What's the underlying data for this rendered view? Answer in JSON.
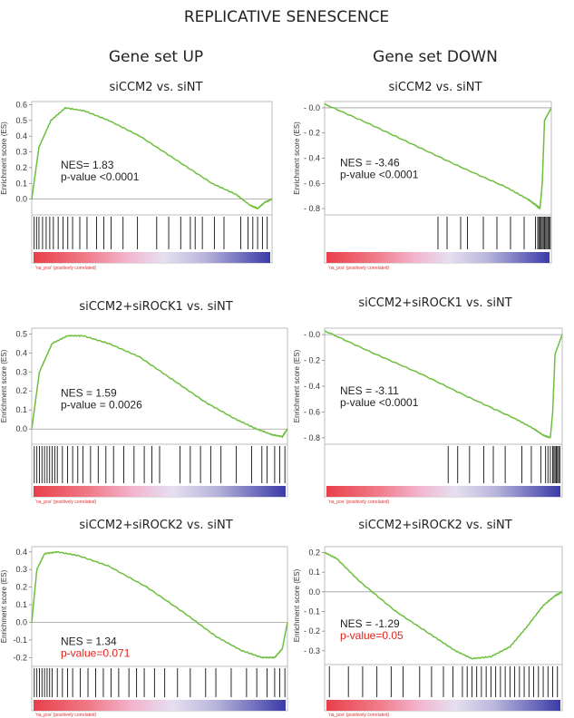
{
  "figure_title": "REPLICATIVE SENESCENCE",
  "columns": [
    "Gene set UP",
    "Gene set DOWN"
  ],
  "colors": {
    "es_line": "#6cbf3c",
    "nes_text": "#222222",
    "pvalue_highlight": "#e0241b",
    "rank_high": "#e8404a",
    "rank_mid": "#f2b6cf",
    "rank_low": "#3b3aa8"
  },
  "common": {
    "ylabel": "Enrichment score (ES)",
    "rank_footer": "'na_pos' (positively correlated)"
  },
  "chart_data": [
    {
      "type": "line",
      "id": "up1",
      "title": "siCCM2 vs. siNT",
      "ylabel": "Enrichment score (ES)",
      "ylim": [
        -0.1,
        0.62
      ],
      "yticks": [
        0.0,
        0.1,
        0.2,
        0.3,
        0.4,
        0.5,
        0.6
      ],
      "tick_labels": [
        "0.0",
        "0.1",
        "0.2",
        "0.3",
        "0.4",
        "0.5",
        "0.6"
      ],
      "series": [
        {
          "x": [
            0,
            0.03,
            0.08,
            0.14,
            0.22,
            0.32,
            0.45,
            0.6,
            0.75,
            0.85,
            0.91,
            0.94,
            0.97,
            1.0
          ],
          "y": [
            0.0,
            0.33,
            0.5,
            0.58,
            0.56,
            0.5,
            0.4,
            0.25,
            0.1,
            0.03,
            -0.04,
            -0.06,
            -0.02,
            0.0
          ]
        }
      ],
      "hits": [
        0.01,
        0.02,
        0.03,
        0.045,
        0.06,
        0.075,
        0.09,
        0.11,
        0.13,
        0.15,
        0.17,
        0.2,
        0.23,
        0.27,
        0.3,
        0.33,
        0.38,
        0.44,
        0.52,
        0.57,
        0.62,
        0.66,
        0.68,
        0.71,
        0.76,
        0.8,
        0.87,
        0.9,
        0.92,
        0.94,
        0.96,
        0.98
      ],
      "nes_label": "NES= 1.83",
      "pvalue_label": "p-value <0.0001",
      "pvalue_red": false,
      "rank_footer": "'na_pos' (positively correlated)"
    },
    {
      "type": "line",
      "id": "down1",
      "title": "siCCM2 vs. siNT",
      "ylabel": "Enrichment score (ES)",
      "ylim": [
        -0.85,
        0.05
      ],
      "yticks": [
        0.0,
        -0.2,
        -0.4,
        -0.6,
        -0.8
      ],
      "tick_labels": [
        "- 0.0",
        "- 0.2",
        "- 0.4",
        "- 0.6",
        "- 0.8"
      ],
      "series": [
        {
          "x": [
            0,
            0.2,
            0.4,
            0.6,
            0.8,
            0.9,
            0.93,
            0.95,
            0.96,
            0.97,
            1.0
          ],
          "y": [
            0.03,
            -0.13,
            -0.3,
            -0.47,
            -0.63,
            -0.73,
            -0.77,
            -0.8,
            -0.6,
            -0.1,
            0.0
          ]
        }
      ],
      "hits": [
        0.5,
        0.54,
        0.6,
        0.63,
        0.7,
        0.76,
        0.82,
        0.88,
        0.93,
        0.94,
        0.945,
        0.95,
        0.955,
        0.96,
        0.965,
        0.97,
        0.975,
        0.98,
        0.985,
        0.99,
        0.995
      ],
      "nes_label": "NES = -3.46",
      "pvalue_label": "p-value <0.0001",
      "pvalue_red": false,
      "rank_footer": "'na_pos' (positively correlated)"
    },
    {
      "type": "line",
      "id": "up2",
      "title": "siCCM2+siROCK1 vs. siNT",
      "ylabel": "Enrichment score (ES)",
      "ylim": [
        -0.08,
        0.53
      ],
      "yticks": [
        0.0,
        0.1,
        0.2,
        0.3,
        0.4,
        0.5
      ],
      "tick_labels": [
        "0.0",
        "0.1",
        "0.2",
        "0.3",
        "0.4",
        "0.5"
      ],
      "series": [
        {
          "x": [
            0,
            0.03,
            0.08,
            0.14,
            0.2,
            0.3,
            0.42,
            0.55,
            0.68,
            0.8,
            0.88,
            0.94,
            0.98,
            1.0
          ],
          "y": [
            0.0,
            0.3,
            0.45,
            0.49,
            0.49,
            0.45,
            0.38,
            0.26,
            0.14,
            0.05,
            0.0,
            -0.03,
            -0.04,
            0.0
          ]
        }
      ],
      "hits": [
        0.01,
        0.02,
        0.03,
        0.04,
        0.05,
        0.06,
        0.07,
        0.08,
        0.09,
        0.1,
        0.12,
        0.14,
        0.16,
        0.18,
        0.2,
        0.23,
        0.26,
        0.29,
        0.32,
        0.36,
        0.4,
        0.44,
        0.47,
        0.5,
        0.58,
        0.62,
        0.66,
        0.7,
        0.74,
        0.8,
        0.86,
        0.9,
        0.92,
        0.95,
        0.97,
        0.99
      ],
      "nes_label": "NES = 1.59",
      "pvalue_label": "p-value = 0.0026",
      "pvalue_red": false,
      "rank_footer": "'na_pos' (positively correlated)"
    },
    {
      "type": "line",
      "id": "down2",
      "title": "siCCM2+siROCK1 vs. siNT",
      "ylabel": "Enrichment score (ES)",
      "ylim": [
        -0.85,
        0.05
      ],
      "yticks": [
        0.0,
        -0.2,
        -0.4,
        -0.6,
        -0.8
      ],
      "tick_labels": [
        "- 0.0",
        "- 0.2",
        "- 0.4",
        "- 0.6",
        "- 0.8"
      ],
      "series": [
        {
          "x": [
            0,
            0.2,
            0.4,
            0.6,
            0.8,
            0.88,
            0.92,
            0.95,
            0.96,
            0.97,
            1.0
          ],
          "y": [
            0.03,
            -0.14,
            -0.3,
            -0.48,
            -0.65,
            -0.73,
            -0.78,
            -0.8,
            -0.6,
            -0.15,
            0.0
          ]
        }
      ],
      "hits": [
        0.52,
        0.56,
        0.61,
        0.67,
        0.71,
        0.76,
        0.83,
        0.87,
        0.91,
        0.93,
        0.94,
        0.95,
        0.96,
        0.965,
        0.97,
        0.975,
        0.98,
        0.985,
        0.99
      ],
      "nes_label": "NES = -3.11",
      "pvalue_label": "p-value <0.0001",
      "pvalue_red": false,
      "rank_footer": "'na_pos' (positively correlated)"
    },
    {
      "type": "line",
      "id": "up3",
      "title": "siCCM2+siROCK2 vs. siNT",
      "ylabel": "Enrichment score (ES)",
      "ylim": [
        -0.25,
        0.43
      ],
      "yticks": [
        0.4,
        0.3,
        0.2,
        0.1,
        0.0,
        -0.1,
        -0.2
      ],
      "tick_labels": [
        "0.4",
        "0.3",
        "0.2",
        "0.1",
        "0.0",
        "-0.1",
        "-0.2"
      ],
      "series": [
        {
          "x": [
            0,
            0.02,
            0.05,
            0.1,
            0.18,
            0.3,
            0.45,
            0.6,
            0.72,
            0.82,
            0.9,
            0.95,
            0.98,
            1.0
          ],
          "y": [
            0.0,
            0.3,
            0.39,
            0.4,
            0.38,
            0.32,
            0.2,
            0.05,
            -0.08,
            -0.16,
            -0.2,
            -0.2,
            -0.15,
            0.0
          ]
        }
      ],
      "hits": [
        0.01,
        0.02,
        0.03,
        0.04,
        0.05,
        0.06,
        0.07,
        0.08,
        0.1,
        0.12,
        0.14,
        0.16,
        0.19,
        0.22,
        0.25,
        0.28,
        0.31,
        0.34,
        0.38,
        0.41,
        0.44,
        0.48,
        0.52,
        0.57,
        0.62,
        0.68,
        0.72,
        0.78,
        0.84,
        0.88,
        0.92,
        0.95,
        0.97,
        0.99
      ],
      "nes_label": "NES = 1.34",
      "pvalue_label": "p-value=0.071",
      "pvalue_red": true,
      "rank_footer": "'na_pos' (positively correlated)"
    },
    {
      "type": "line",
      "id": "down3",
      "title": "siCCM2+siROCK2 vs. siNT",
      "ylabel": "Enrichment score (ES)",
      "ylim": [
        -0.37,
        0.23
      ],
      "yticks": [
        0.2,
        0.1,
        0.0,
        -0.1,
        -0.2,
        -0.3
      ],
      "tick_labels": [
        "0.2",
        "0.1",
        "0.0",
        "- 0.1",
        "- 0.2",
        "- 0.3"
      ],
      "series": [
        {
          "x": [
            0,
            0.05,
            0.15,
            0.3,
            0.45,
            0.55,
            0.62,
            0.7,
            0.78,
            0.85,
            0.92,
            0.97,
            1.0
          ],
          "y": [
            0.2,
            0.17,
            0.05,
            -0.1,
            -0.22,
            -0.3,
            -0.34,
            -0.33,
            -0.28,
            -0.18,
            -0.07,
            -0.02,
            0.0
          ]
        }
      ],
      "hits": [
        0.02,
        0.1,
        0.16,
        0.22,
        0.28,
        0.33,
        0.4,
        0.45,
        0.5,
        0.54,
        0.58,
        0.6,
        0.62,
        0.64,
        0.66,
        0.68,
        0.7,
        0.72,
        0.74,
        0.76,
        0.78,
        0.8,
        0.82,
        0.84,
        0.86,
        0.88,
        0.9,
        0.92,
        0.94,
        0.96,
        0.98
      ],
      "nes_label": "NES = -1.29",
      "pvalue_label": "p-value=0.05",
      "pvalue_red": true,
      "rank_footer": "'na_pos' (positively correlated)"
    }
  ]
}
